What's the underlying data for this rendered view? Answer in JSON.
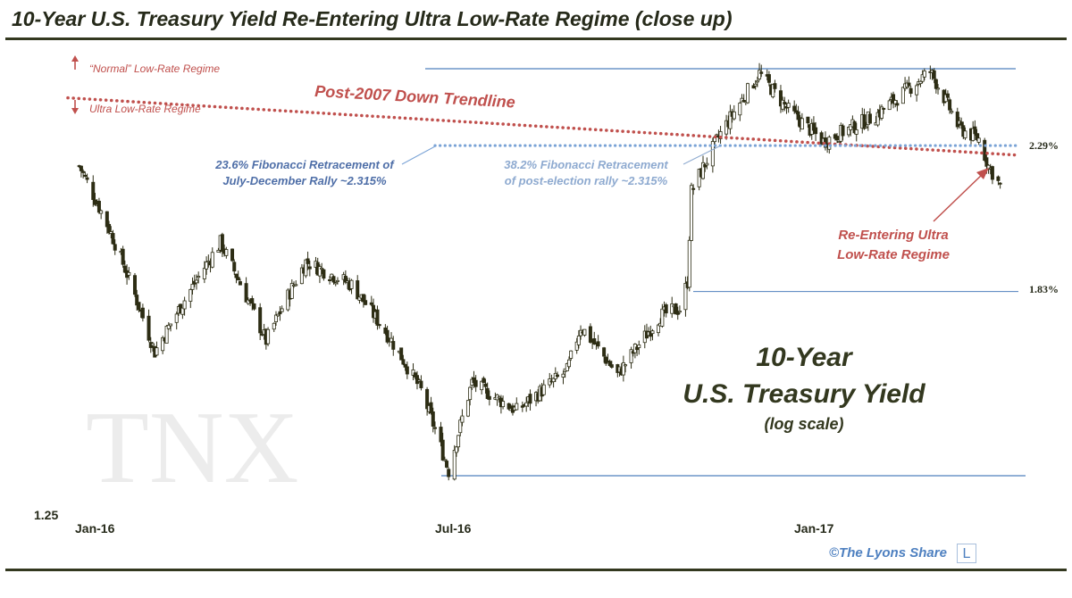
{
  "page": {
    "title": "10-Year U.S. Treasury Yield Re-Entering Ultra Low-Rate Regime (close up)",
    "credit": "©The Lyons Share",
    "logo_letter": "L"
  },
  "chart_data": {
    "type": "candlestick",
    "title": "10-Year U.S. Treasury Yield Re-Entering Ultra Low-Rate Regime (close up)",
    "watermark": "TNX",
    "center_title": [
      "10-Year",
      "U.S. Treasury Yield",
      "(log scale)"
    ],
    "y_scale": "log",
    "ylim": [
      1.25,
      2.65
    ],
    "x_tick_labels": [
      "Jan-16",
      "Jul-16",
      "Jan-17"
    ],
    "y_tick_labels": [
      "1.25"
    ],
    "colors": {
      "trendline": "#c0504d",
      "fib_line": "#7aa3d6",
      "hlines": "#4f81bd",
      "candle_up": "#ffffff",
      "candle_down": "#2d2d14",
      "text_dark": "#262a1a",
      "fib_text": "#4f6fa8",
      "fib_text_light": "#8eaad0"
    },
    "annotations": {
      "normal_regime": "“Normal” Low-Rate Regime",
      "ultra_regime": "Ultra Low-Rate Regime",
      "trendline": "Post-2007 Down Trendline",
      "fib_1": [
        "23.6% Fibonacci Retracement of",
        "July-December Rally ~2.315%"
      ],
      "fib_2": [
        "38.2% Fibonacci Retracement",
        "of post-election rally ~2.315%"
      ],
      "reentry": [
        "Re-Entering Ultra",
        "Low-Rate Regime"
      ]
    },
    "levels": [
      {
        "label": "2.29%",
        "value": 2.29
      },
      {
        "label": "1.83%",
        "value": 1.83
      }
    ],
    "reference_lines": {
      "fib": 2.315,
      "high": 2.62,
      "low": 1.36,
      "trend_start": 2.5,
      "trend_end": 2.28
    },
    "anchors": [
      {
        "date": "2016-01-04",
        "close": 2.24
      },
      {
        "date": "2016-01-20",
        "close": 2.01
      },
      {
        "date": "2016-02-11",
        "close": 1.66
      },
      {
        "date": "2016-03-15",
        "close": 1.98
      },
      {
        "date": "2016-04-07",
        "close": 1.69
      },
      {
        "date": "2016-04-27",
        "close": 1.92
      },
      {
        "date": "2016-05-20",
        "close": 1.85
      },
      {
        "date": "2016-06-08",
        "close": 1.7
      },
      {
        "date": "2016-06-24",
        "close": 1.56
      },
      {
        "date": "2016-07-08",
        "close": 1.37
      },
      {
        "date": "2016-07-20",
        "close": 1.58
      },
      {
        "date": "2016-08-12",
        "close": 1.51
      },
      {
        "date": "2016-09-07",
        "close": 1.61
      },
      {
        "date": "2016-09-14",
        "close": 1.73
      },
      {
        "date": "2016-10-03",
        "close": 1.6
      },
      {
        "date": "2016-10-25",
        "close": 1.76
      },
      {
        "date": "2016-11-04",
        "close": 1.78
      },
      {
        "date": "2016-11-08",
        "close": 1.86
      },
      {
        "date": "2016-11-10",
        "close": 2.15
      },
      {
        "date": "2016-11-25",
        "close": 2.36
      },
      {
        "date": "2016-12-15",
        "close": 2.6
      },
      {
        "date": "2016-12-30",
        "close": 2.45
      },
      {
        "date": "2017-01-17",
        "close": 2.33
      },
      {
        "date": "2017-02-13",
        "close": 2.43
      },
      {
        "date": "2017-03-13",
        "close": 2.61
      },
      {
        "date": "2017-03-28",
        "close": 2.38
      },
      {
        "date": "2017-04-07",
        "close": 2.34
      },
      {
        "date": "2017-04-12",
        "close": 2.24
      },
      {
        "date": "2017-04-18",
        "close": 2.17
      }
    ]
  }
}
